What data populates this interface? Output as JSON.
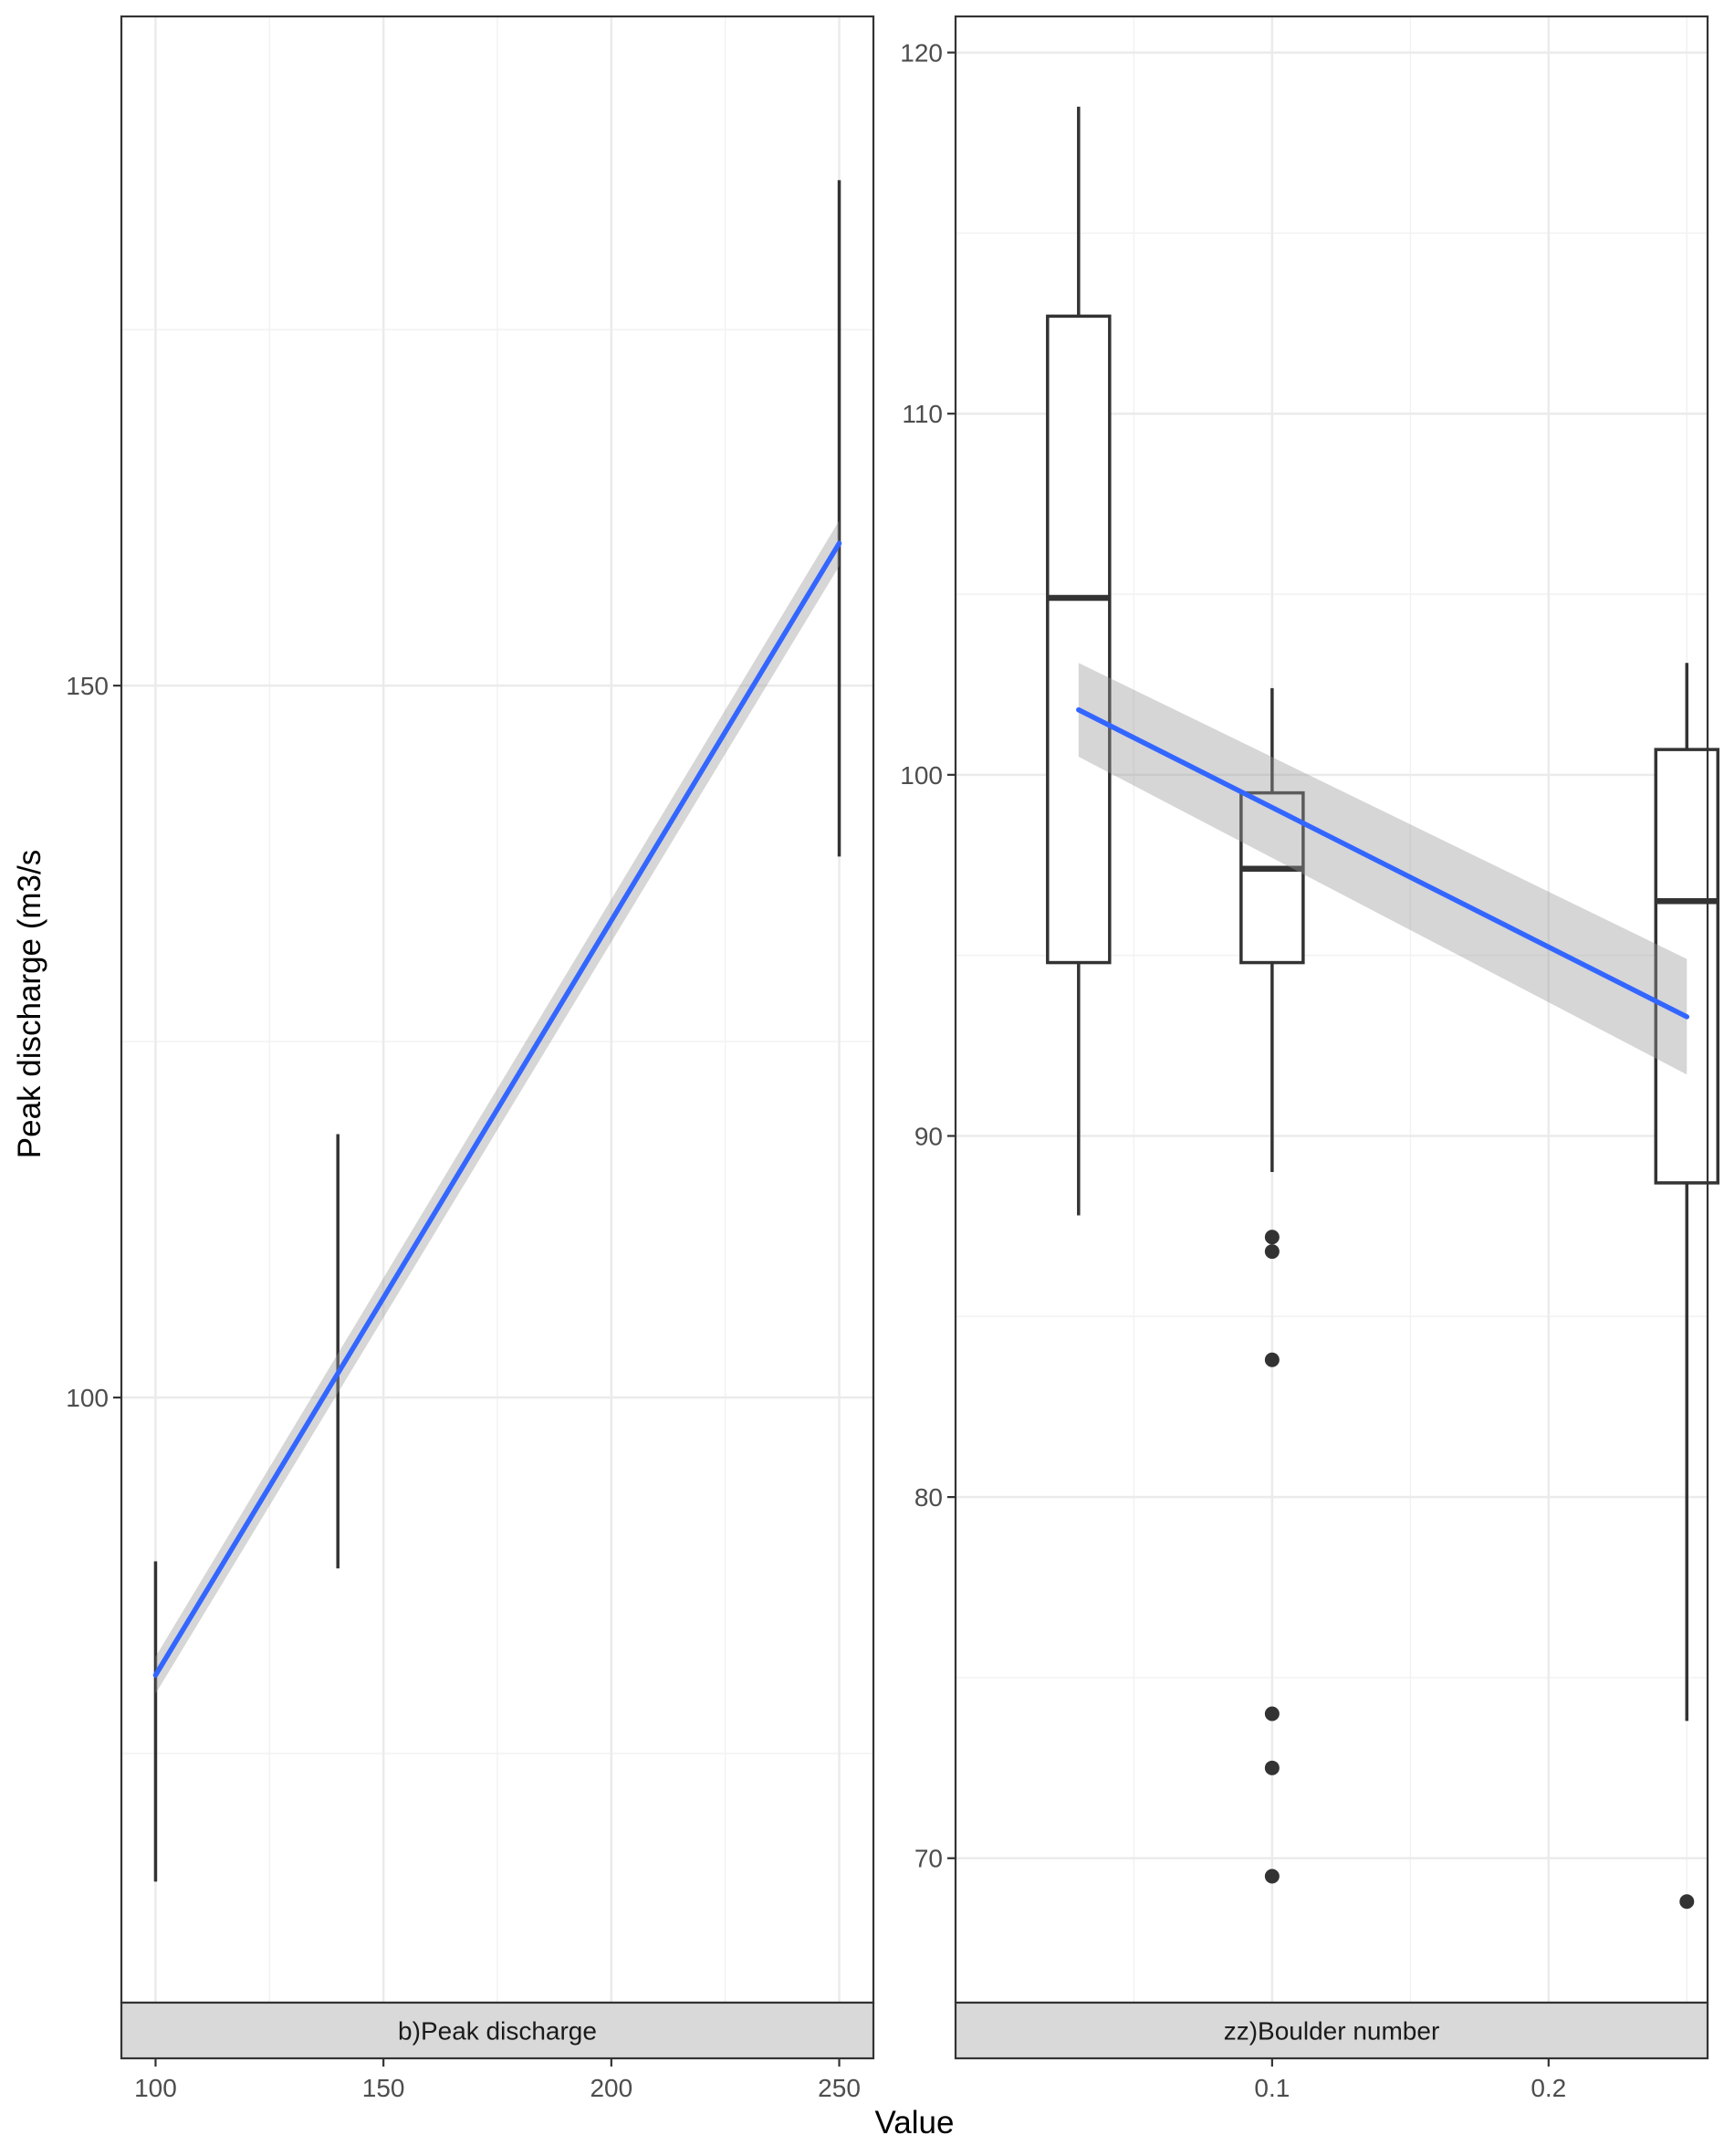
{
  "chart_data": {
    "type": "boxplot",
    "ylabel": "Peak discharge (m3/s",
    "xlabel": "Value",
    "grid": true,
    "panels": [
      {
        "strip_label": "b)Peak discharge",
        "xlim": [
          92.5,
          257.5
        ],
        "ylim": [
          57.5,
          197.0
        ],
        "x_ticks": [
          100,
          150,
          200,
          250
        ],
        "x_tick_labels": [
          "100",
          "150",
          "200",
          "250"
        ],
        "y_ticks": [
          100,
          150
        ],
        "y_tick_labels": [
          "100",
          "150"
        ],
        "boxes": [
          {
            "x": 100,
            "whisker_low": 66.0,
            "whisker_high": 88.5
          },
          {
            "x": 140,
            "whisker_low": 88.0,
            "whisker_high": 118.5
          },
          {
            "x": 250,
            "whisker_low": 138.0,
            "whisker_high": 185.5
          }
        ],
        "trend": {
          "x": [
            100,
            250
          ],
          "y": [
            80.5,
            160.0
          ],
          "ci_halfwidth_start": 1.3,
          "ci_halfwidth_end": 1.6
        }
      },
      {
        "strip_label": "zz)Boulder number",
        "xlim": [
          -0.0145,
          0.2575
        ],
        "ylim": [
          66.0,
          121.0
        ],
        "x_ticks": [
          0.1,
          0.2
        ],
        "x_tick_labels": [
          "0.1",
          "0.2"
        ],
        "y_ticks": [
          70,
          80,
          90,
          100,
          110,
          120
        ],
        "y_tick_labels": [
          "70",
          "80",
          "90",
          "100",
          "110",
          "120"
        ],
        "boxes": [
          {
            "x": 0.03,
            "whisker_low": 87.8,
            "q1": 94.8,
            "median": 104.9,
            "q3": 112.7,
            "whisker_high": 118.5,
            "outliers": []
          },
          {
            "x": 0.1,
            "whisker_low": 89.0,
            "q1": 94.8,
            "median": 97.4,
            "q3": 99.5,
            "whisker_high": 102.4,
            "outliers": [
              87.2,
              86.8,
              83.8,
              74.0,
              72.5,
              69.5
            ]
          },
          {
            "x": 0.25,
            "whisker_low": 73.8,
            "q1": 88.7,
            "median": 96.5,
            "q3": 100.7,
            "whisker_high": 103.1,
            "outliers": [
              68.8
            ]
          }
        ],
        "trend": {
          "x": [
            0.03,
            0.25
          ],
          "y": [
            101.8,
            93.3
          ],
          "ci_halfwidth_start": 1.3,
          "ci_halfwidth_end": 1.6
        }
      }
    ]
  }
}
